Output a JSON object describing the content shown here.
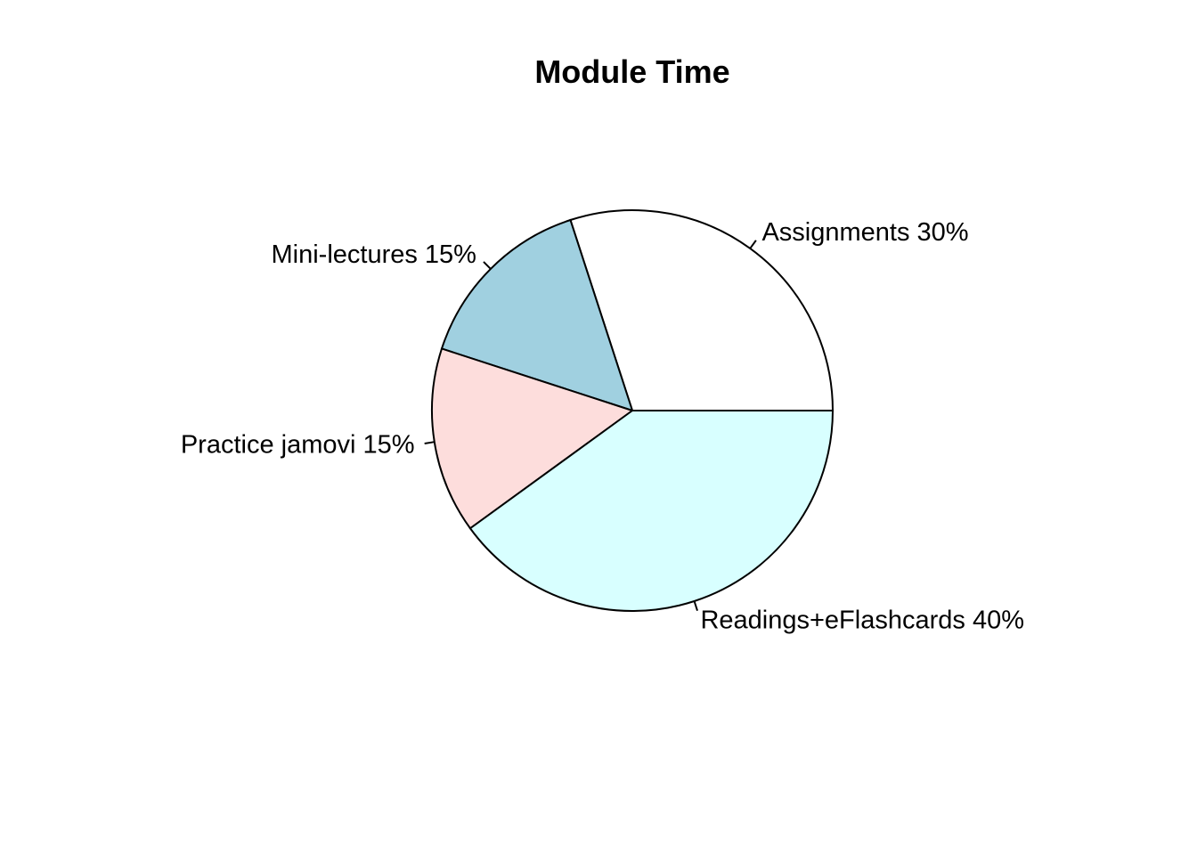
{
  "chart_data": {
    "type": "pie",
    "title": "Module Time",
    "start_angle_deg": 0,
    "direction": "counterclockwise",
    "slices": [
      {
        "label": "Assignments 30%",
        "value": 30,
        "color": "#ffffff"
      },
      {
        "label": "Mini-lectures 15%",
        "value": 15,
        "color": "#a0d0e0"
      },
      {
        "label": "Practice jamovi 15%",
        "value": 15,
        "color": "#fddddc"
      },
      {
        "label": "Readings+eFlashcards 40%",
        "value": 40,
        "color": "#d8ffff"
      }
    ],
    "outline_color": "#000000"
  }
}
